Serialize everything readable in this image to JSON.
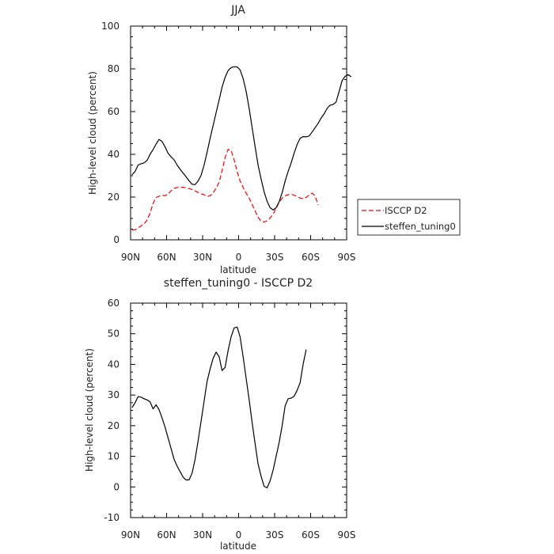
{
  "chart_data": [
    {
      "type": "line",
      "title": "JJA",
      "xlabel": "latitude",
      "ylabel": "High-level cloud (percent)",
      "xlim": [
        90,
        -90
      ],
      "ylim": [
        0,
        100
      ],
      "xticks": [
        {
          "value": 90,
          "label": "90N"
        },
        {
          "value": 60,
          "label": "60N"
        },
        {
          "value": 30,
          "label": "30N"
        },
        {
          "value": 0,
          "label": "0"
        },
        {
          "value": -30,
          "label": "30S"
        },
        {
          "value": -60,
          "label": "60S"
        },
        {
          "value": -90,
          "label": "90S"
        }
      ],
      "yticks": [
        0,
        20,
        40,
        60,
        80,
        100
      ],
      "legend_position": "right",
      "series": [
        {
          "name": "ISCCP D2",
          "color": "#ff0000",
          "dash": "dashed",
          "points": [
            [
              88.75,
              4.6
            ],
            [
              86.25,
              4.7
            ],
            [
              83.75,
              5.5
            ],
            [
              81.25,
              6.5
            ],
            [
              78.75,
              7.4
            ],
            [
              76.25,
              9.3
            ],
            [
              73.75,
              12.5
            ],
            [
              71.25,
              17.0
            ],
            [
              68.75,
              19.8
            ],
            [
              66.25,
              20.4
            ],
            [
              63.75,
              20.8
            ],
            [
              61.25,
              20.6
            ],
            [
              58.75,
              21.4
            ],
            [
              56.25,
              23.0
            ],
            [
              53.75,
              24.0
            ],
            [
              51.25,
              24.5
            ],
            [
              48.75,
              24.6
            ],
            [
              46.25,
              24.6
            ],
            [
              43.75,
              24.3
            ],
            [
              41.25,
              24.0
            ],
            [
              38.75,
              23.5
            ],
            [
              36.25,
              22.9
            ],
            [
              33.75,
              22.2
            ],
            [
              31.25,
              21.5
            ],
            [
              28.75,
              21.1
            ],
            [
              26.25,
              20.3
            ],
            [
              23.75,
              20.6
            ],
            [
              21.25,
              22.0
            ],
            [
              18.75,
              24.2
            ],
            [
              16.25,
              27.0
            ],
            [
              13.75,
              32.5
            ],
            [
              11.25,
              38.5
            ],
            [
              8.75,
              42.3
            ],
            [
              6.25,
              41.8
            ],
            [
              3.75,
              37.5
            ],
            [
              1.25,
              32.0
            ],
            [
              -1.25,
              27.5
            ],
            [
              -3.75,
              24.5
            ],
            [
              -6.25,
              21.8
            ],
            [
              -8.75,
              19.5
            ],
            [
              -11.25,
              16.5
            ],
            [
              -13.75,
              13.5
            ],
            [
              -16.25,
              10.5
            ],
            [
              -18.75,
              8.7
            ],
            [
              -21.25,
              8.3
            ],
            [
              -23.75,
              8.9
            ],
            [
              -26.25,
              10.2
            ],
            [
              -28.75,
              12.0
            ],
            [
              -31.25,
              14.8
            ],
            [
              -33.75,
              17.5
            ],
            [
              -36.25,
              19.5
            ],
            [
              -38.75,
              20.6
            ],
            [
              -41.25,
              21.1
            ],
            [
              -43.75,
              21.3
            ],
            [
              -46.25,
              20.9
            ],
            [
              -48.75,
              20.2
            ],
            [
              -51.25,
              19.5
            ],
            [
              -53.75,
              19.3
            ],
            [
              -56.25,
              19.8
            ],
            [
              -58.75,
              20.9
            ],
            [
              -61.25,
              21.8
            ],
            [
              -63.75,
              20.5
            ],
            [
              -66.25,
              16.3
            ]
          ]
        },
        {
          "name": "steffen_tuning0",
          "color": "#000000",
          "dash": "solid",
          "points": [
            [
              88.75,
              30.5
            ],
            [
              86.25,
              32.0
            ],
            [
              83.75,
              35.0
            ],
            [
              81.25,
              35.6
            ],
            [
              78.75,
              36.0
            ],
            [
              76.25,
              37.2
            ],
            [
              73.75,
              40.0
            ],
            [
              71.25,
              42.2
            ],
            [
              68.75,
              44.8
            ],
            [
              66.25,
              47.0
            ],
            [
              63.75,
              46.0
            ],
            [
              61.25,
              43.5
            ],
            [
              58.75,
              40.5
            ],
            [
              56.25,
              38.8
            ],
            [
              53.75,
              37.4
            ],
            [
              51.25,
              35.0
            ],
            [
              48.75,
              33.0
            ],
            [
              46.25,
              31.2
            ],
            [
              43.75,
              29.5
            ],
            [
              41.25,
              27.6
            ],
            [
              38.75,
              26.0
            ],
            [
              36.25,
              25.8
            ],
            [
              33.75,
              27.5
            ],
            [
              31.25,
              30.2
            ],
            [
              28.75,
              35.0
            ],
            [
              26.25,
              41.0
            ],
            [
              23.75,
              47.5
            ],
            [
              21.25,
              53.5
            ],
            [
              18.75,
              59.5
            ],
            [
              16.25,
              65.5
            ],
            [
              13.75,
              71.5
            ],
            [
              11.25,
              76.0
            ],
            [
              8.75,
              79.2
            ],
            [
              6.25,
              80.6
            ],
            [
              3.75,
              81.0
            ],
            [
              1.25,
              80.9
            ],
            [
              -1.25,
              79.5
            ],
            [
              -3.75,
              75.5
            ],
            [
              -6.25,
              69.5
            ],
            [
              -8.75,
              61.5
            ],
            [
              -11.25,
              52.5
            ],
            [
              -13.75,
              43.5
            ],
            [
              -16.25,
              35.0
            ],
            [
              -18.75,
              28.5
            ],
            [
              -21.25,
              22.5
            ],
            [
              -23.75,
              18.0
            ],
            [
              -26.25,
              15.0
            ],
            [
              -28.75,
              14.0
            ],
            [
              -31.25,
              15.0
            ],
            [
              -33.75,
              17.8
            ],
            [
              -36.25,
              22.0
            ],
            [
              -38.75,
              27.5
            ],
            [
              -41.25,
              32.0
            ],
            [
              -43.75,
              36.0
            ],
            [
              -46.25,
              40.5
            ],
            [
              -48.75,
              44.5
            ],
            [
              -51.25,
              47.5
            ],
            [
              -53.75,
              48.3
            ],
            [
              -56.25,
              48.2
            ],
            [
              -58.75,
              48.6
            ],
            [
              -61.25,
              50.5
            ],
            [
              -63.75,
              52.5
            ],
            [
              -66.25,
              54.5
            ],
            [
              -68.75,
              57.0
            ],
            [
              -71.25,
              59.0
            ],
            [
              -73.75,
              61.5
            ],
            [
              -76.25,
              63.0
            ],
            [
              -78.75,
              63.3
            ],
            [
              -81.25,
              64.5
            ],
            [
              -83.75,
              69.5
            ],
            [
              -86.25,
              74.5
            ],
            [
              -88.75,
              76.5
            ],
            [
              -91.25,
              77.3
            ],
            [
              -93.75,
              76.3
            ]
          ]
        }
      ]
    },
    {
      "type": "line",
      "title": "steffen_tuning0 - ISCCP D2",
      "xlabel": "latitude",
      "ylabel": "High-level cloud (percent)",
      "xlim": [
        90,
        -90
      ],
      "ylim": [
        -10,
        60
      ],
      "xticks": [
        {
          "value": 90,
          "label": "90N"
        },
        {
          "value": 60,
          "label": "60N"
        },
        {
          "value": 30,
          "label": "30N"
        },
        {
          "value": 0,
          "label": "0"
        },
        {
          "value": -30,
          "label": "30S"
        },
        {
          "value": -60,
          "label": "60S"
        },
        {
          "value": -90,
          "label": "90S"
        }
      ],
      "yticks": [
        -10,
        0,
        10,
        20,
        30,
        40,
        50,
        60
      ],
      "series": [
        {
          "color": "#000000",
          "dash": "solid",
          "points": [
            [
              88.75,
              25.9
            ],
            [
              86.25,
              27.5
            ],
            [
              83.75,
              29.5
            ],
            [
              81.25,
              29.3
            ],
            [
              78.75,
              28.8
            ],
            [
              76.25,
              28.4
            ],
            [
              73.75,
              27.8
            ],
            [
              71.25,
              25.5
            ],
            [
              68.75,
              26.8
            ],
            [
              66.25,
              25.2
            ],
            [
              63.75,
              22.5
            ],
            [
              61.25,
              19.5
            ],
            [
              58.75,
              16.0
            ],
            [
              56.25,
              12.5
            ],
            [
              53.75,
              9.0
            ],
            [
              51.25,
              6.8
            ],
            [
              48.75,
              5.0
            ],
            [
              46.25,
              3.2
            ],
            [
              43.75,
              2.3
            ],
            [
              41.25,
              2.3
            ],
            [
              38.75,
              4.5
            ],
            [
              36.25,
              9.0
            ],
            [
              33.75,
              15.0
            ],
            [
              31.25,
              21.5
            ],
            [
              28.75,
              28.0
            ],
            [
              26.25,
              34.5
            ],
            [
              23.75,
              38.5
            ],
            [
              21.25,
              42.0
            ],
            [
              18.75,
              44.0
            ],
            [
              16.25,
              42.5
            ],
            [
              13.75,
              38.0
            ],
            [
              11.25,
              39.0
            ],
            [
              8.75,
              44.5
            ],
            [
              6.25,
              49.0
            ],
            [
              3.75,
              51.9
            ],
            [
              1.25,
              52.2
            ],
            [
              -1.25,
              49.0
            ],
            [
              -3.75,
              42.5
            ],
            [
              -6.25,
              35.5
            ],
            [
              -8.75,
              28.5
            ],
            [
              -11.25,
              21.0
            ],
            [
              -13.75,
              14.0
            ],
            [
              -16.25,
              7.5
            ],
            [
              -18.75,
              3.5
            ],
            [
              -21.25,
              0.2
            ],
            [
              -23.75,
              -0.3
            ],
            [
              -26.25,
              2.0
            ],
            [
              -28.75,
              5.5
            ],
            [
              -31.25,
              10.0
            ],
            [
              -33.75,
              14.5
            ],
            [
              -36.25,
              20.0
            ],
            [
              -38.75,
              26.5
            ],
            [
              -41.25,
              28.8
            ],
            [
              -43.75,
              29.0
            ],
            [
              -46.25,
              29.6
            ],
            [
              -48.75,
              31.5
            ],
            [
              -51.25,
              34.0
            ],
            [
              -53.75,
              40.0
            ],
            [
              -56.25,
              44.8
            ]
          ]
        }
      ]
    }
  ]
}
